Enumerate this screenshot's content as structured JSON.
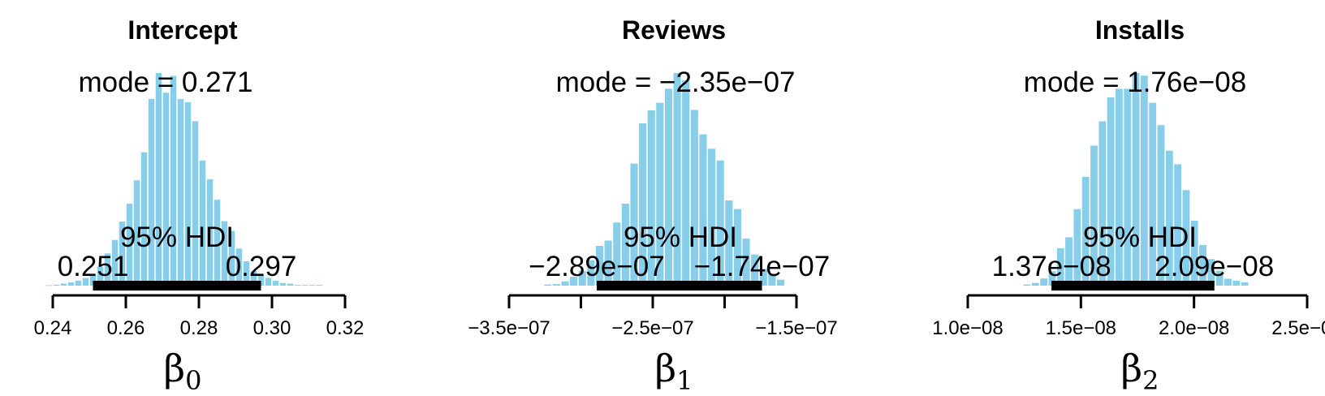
{
  "colors": {
    "bar": "#87ceeb",
    "hdi_bar": "#000000",
    "axis": "#000000"
  },
  "chart_data": [
    {
      "type": "bar",
      "title": "Intercept",
      "xlabel": "β",
      "xlabel_sub": "0",
      "xlim": [
        0.24,
        0.32
      ],
      "ticks": [
        0.24,
        0.26,
        0.28,
        0.3,
        0.32
      ],
      "tick_labels": [
        "0.24",
        "0.26",
        "0.28",
        "0.30",
        "0.32"
      ],
      "mode_label": "mode = 0.271",
      "hdi_label": "95% HDI",
      "hdi": [
        0.251,
        0.297
      ],
      "hdi_labels": [
        "0.251",
        "0.297"
      ],
      "bin_width": 0.002,
      "bins": [
        0.239,
        0.241,
        0.243,
        0.245,
        0.247,
        0.249,
        0.251,
        0.253,
        0.255,
        0.257,
        0.259,
        0.261,
        0.263,
        0.265,
        0.267,
        0.269,
        0.271,
        0.273,
        0.275,
        0.277,
        0.279,
        0.281,
        0.283,
        0.285,
        0.287,
        0.289,
        0.291,
        0.293,
        0.295,
        0.297,
        0.299,
        0.301,
        0.303,
        0.305,
        0.307,
        0.309,
        0.311,
        0.313
      ],
      "density": [
        0.2,
        0.4,
        0.9,
        1.5,
        2.3,
        3.4,
        4.9,
        8.6,
        14.6,
        20.7,
        29,
        37.1,
        47.7,
        60.4,
        84.6,
        96.3,
        87.4,
        95,
        84.5,
        83.1,
        74.5,
        56.7,
        48.2,
        38.9,
        29.2,
        24.8,
        16.8,
        11,
        6.6,
        4.7,
        3.5,
        2.2,
        1.2,
        0.9,
        0.3,
        0.3,
        0.3,
        0.3
      ]
    },
    {
      "type": "bar",
      "title": "Reviews",
      "xlabel": "β",
      "xlabel_sub": "1",
      "xlim": [
        -3.5e-07,
        -1.5e-07
      ],
      "ticks": [
        -3.5e-07,
        -3e-07,
        -2.5e-07,
        -2e-07,
        -1.5e-07
      ],
      "tick_labels": [
        "−3.5e−07",
        "",
        "−2.5e−07",
        "",
        "−1.5e−07"
      ],
      "mode_label": "mode = −2.35e−07",
      "hdi_label": "95% HDI",
      "hdi": [
        -2.89e-07,
        -1.74e-07
      ],
      "hdi_labels": [
        "−2.89e−07",
        "−1.74e−07"
      ],
      "bin_width": 6e-09,
      "bins": [
        -3.23e-07,
        -3.17e-07,
        -3.11e-07,
        -3.05e-07,
        -2.99e-07,
        -2.93e-07,
        -2.87e-07,
        -2.81e-07,
        -2.75e-07,
        -2.69e-07,
        -2.63e-07,
        -2.57e-07,
        -2.51e-07,
        -2.45e-07,
        -2.39e-07,
        -2.33e-07,
        -2.27e-07,
        -2.21e-07,
        -2.15e-07,
        -2.09e-07,
        -2.03e-07,
        -1.97e-07,
        -1.91e-07,
        -1.85e-07,
        -1.79e-07,
        -1.73e-07,
        -1.67e-07,
        -1.61e-07
      ],
      "density": [
        0.5,
        0.7,
        1.9,
        4,
        6.6,
        11.5,
        18,
        20.4,
        28.6,
        37.1,
        55.3,
        73.5,
        79.4,
        82.8,
        89.2,
        96.3,
        93,
        79.6,
        68.5,
        62,
        56.7,
        38.6,
        34.7,
        21.3,
        14.1,
        7.6,
        5.5,
        2.7
      ]
    },
    {
      "type": "bar",
      "title": "Installs",
      "xlabel": "β",
      "xlabel_sub": "2",
      "xlim": [
        1e-08,
        2.5e-08
      ],
      "ticks": [
        1e-08,
        1.5e-08,
        2e-08,
        2.5e-08
      ],
      "tick_labels": [
        "1.0e−08",
        "1.5e−08",
        "2.0e−08",
        "2.5e−08"
      ],
      "mode_label": "mode = 1.76e−08",
      "hdi_label": "95% HDI",
      "hdi": [
        1.37e-08,
        2.09e-08
      ],
      "hdi_labels": [
        "1.37e−08",
        "2.09e−08"
      ],
      "bin_width": 3.7e-10,
      "bins": [
        1.262e-08,
        1.299e-08,
        1.336e-08,
        1.373e-08,
        1.41e-08,
        1.447e-08,
        1.484e-08,
        1.521e-08,
        1.558e-08,
        1.595e-08,
        1.632e-08,
        1.669e-08,
        1.706e-08,
        1.743e-08,
        1.78e-08,
        1.817e-08,
        1.854e-08,
        1.891e-08,
        1.928e-08,
        1.965e-08,
        2.002e-08,
        2.039e-08,
        2.076e-08,
        2.113e-08,
        2.15e-08,
        2.187e-08,
        2.224e-08
      ],
      "density": [
        0.5,
        1.2,
        3.2,
        6.5,
        16.8,
        21.7,
        34.4,
        48.9,
        62.9,
        73.8,
        84.6,
        88.4,
        88.4,
        95.5,
        94.3,
        82.1,
        72.1,
        60.6,
        54.5,
        42.9,
        29.2,
        18.3,
        11.9,
        6.7,
        3.1,
        2.2,
        1.5
      ]
    }
  ]
}
